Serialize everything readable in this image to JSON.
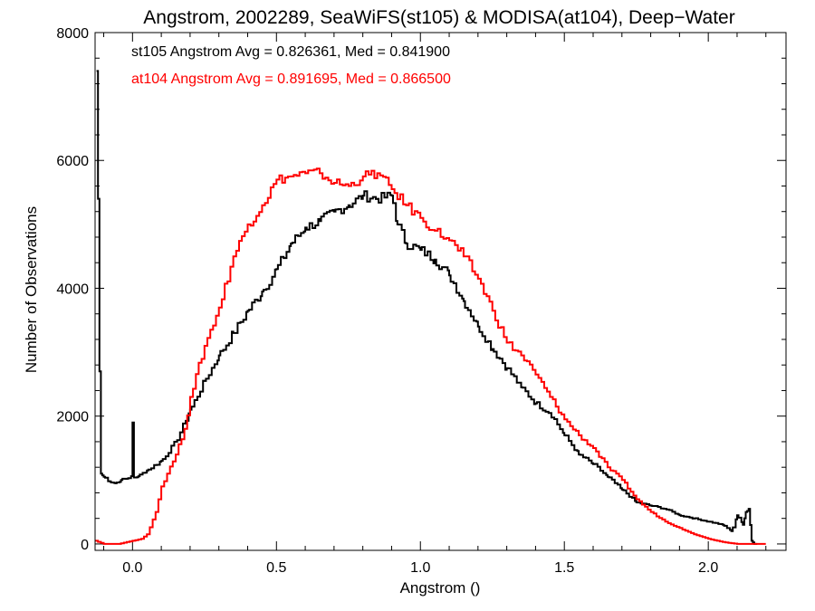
{
  "chart_data": {
    "type": "line",
    "title": "Angstrom, 2002289, SeaWiFS(st105) & MODISA(at104), Deep−Water",
    "xlabel": "Angstrom ()",
    "ylabel": "Number of Observations",
    "xlim": [
      -0.13,
      2.27
    ],
    "ylim": [
      -100,
      8000
    ],
    "xticks": [
      0.0,
      0.5,
      1.0,
      1.5,
      2.0
    ],
    "xtick_labels": [
      "0.0",
      "0.5",
      "1.0",
      "1.5",
      "2.0"
    ],
    "yticks": [
      0,
      2000,
      4000,
      6000,
      8000
    ],
    "ytick_labels": [
      "0",
      "2000",
      "4000",
      "6000",
      "8000"
    ],
    "grid": false,
    "legend": "top-left",
    "annotations": [
      {
        "text": "st105 Angstrom Avg = 0.826361, Med = 0.841900",
        "color": "#000000"
      },
      {
        "text": "at104 Angstrom Avg = 0.891695, Med = 0.866500",
        "color": "#ff0000"
      }
    ],
    "series": [
      {
        "color": "#000000",
        "x": [
          -0.125,
          -0.12,
          -0.115,
          -0.11,
          -0.1,
          -0.08,
          -0.06,
          -0.04,
          -0.02,
          -0.005,
          0.0,
          0.005,
          0.02,
          0.05,
          0.1,
          0.15,
          0.2,
          0.25,
          0.3,
          0.35,
          0.4,
          0.45,
          0.5,
          0.55,
          0.6,
          0.65,
          0.7,
          0.75,
          0.8,
          0.85,
          0.9,
          0.92,
          0.95,
          1.0,
          1.05,
          1.1,
          1.15,
          1.2,
          1.25,
          1.3,
          1.35,
          1.4,
          1.45,
          1.5,
          1.55,
          1.6,
          1.65,
          1.7,
          1.75,
          1.8,
          1.85,
          1.9,
          1.95,
          2.0,
          2.05,
          2.08,
          2.1,
          2.12,
          2.13,
          2.14,
          2.15,
          2.16,
          2.17
        ],
        "y": [
          7400,
          5400,
          2700,
          1100,
          1050,
          980,
          950,
          1000,
          1020,
          1060,
          1900,
          1040,
          1060,
          1150,
          1300,
          1600,
          2100,
          2550,
          2950,
          3300,
          3650,
          3950,
          4300,
          4700,
          4950,
          5050,
          5200,
          5300,
          5450,
          5400,
          5450,
          5000,
          4700,
          4600,
          4450,
          4200,
          3800,
          3400,
          3050,
          2750,
          2450,
          2200,
          2050,
          1700,
          1400,
          1250,
          1050,
          850,
          650,
          600,
          550,
          450,
          400,
          350,
          300,
          200,
          450,
          300,
          500,
          550,
          50,
          0,
          0
        ]
      },
      {
        "color": "#ff0000",
        "x": [
          -0.13,
          -0.1,
          -0.05,
          0.0,
          0.03,
          0.05,
          0.08,
          0.1,
          0.12,
          0.15,
          0.18,
          0.2,
          0.25,
          0.3,
          0.35,
          0.4,
          0.45,
          0.5,
          0.55,
          0.6,
          0.65,
          0.7,
          0.75,
          0.8,
          0.85,
          0.9,
          0.95,
          1.0,
          1.05,
          1.1,
          1.15,
          1.2,
          1.25,
          1.3,
          1.35,
          1.4,
          1.45,
          1.5,
          1.55,
          1.6,
          1.65,
          1.7,
          1.75,
          1.8,
          1.85,
          1.9,
          1.95,
          2.0,
          2.05,
          2.1,
          2.15,
          2.2
        ],
        "y": [
          50,
          0,
          0,
          50,
          80,
          150,
          500,
          900,
          1100,
          1400,
          1800,
          2300,
          3100,
          3700,
          4500,
          5000,
          5300,
          5700,
          5750,
          5800,
          5800,
          5650,
          5600,
          5750,
          5800,
          5550,
          5300,
          5100,
          4900,
          4750,
          4500,
          4150,
          3650,
          3150,
          2950,
          2650,
          2300,
          1950,
          1700,
          1500,
          1200,
          1000,
          700,
          500,
          350,
          250,
          150,
          80,
          30,
          0,
          0,
          0
        ]
      }
    ]
  }
}
